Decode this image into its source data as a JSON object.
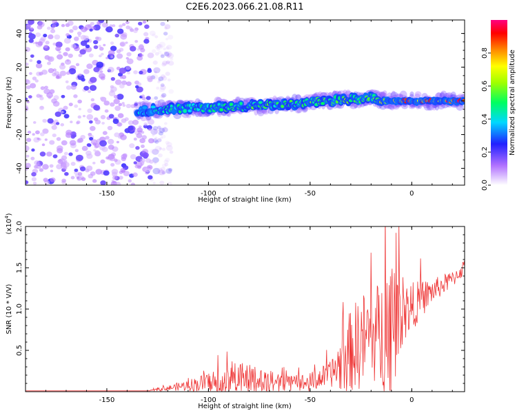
{
  "title": "C2E6.2023.066.21.08.R11",
  "colors": {
    "snr_line": "#ee3333",
    "axis": "#000000"
  },
  "chart_data": [
    {
      "type": "heatmap",
      "xlabel": "Height of straight line (km)",
      "ylabel": "Frequency (Hz)",
      "xlim": [
        -190,
        26
      ],
      "ylim": [
        -50,
        48
      ],
      "xticks": [
        -150,
        -100,
        -50,
        0
      ],
      "xtick_labels": [
        "-150",
        "-100",
        "-50",
        "0"
      ],
      "yticks": [
        -40,
        -20,
        0,
        20,
        40
      ],
      "ytick_labels": [
        "-40",
        "-20",
        "0",
        "20",
        "40"
      ],
      "colorbar": {
        "label": "Normalized spectral amplitude",
        "range": [
          0,
          1
        ],
        "ticks": [
          0.0,
          0.2,
          0.4,
          0.6,
          0.8
        ],
        "tick_labels": [
          "0.0",
          "0.2",
          "0.4",
          "0.6",
          "0.8"
        ],
        "colormap": "rainbow (white-violet-blue-cyan-green-yellow-red-pink)"
      },
      "features": [
        {
          "description": "scattered noise",
          "x_range": [
            -190,
            -128
          ],
          "freq_range": [
            -50,
            48
          ],
          "amplitude": 0.15
        },
        {
          "description": "main trace (freq vs height)",
          "x": [
            -135,
            -120,
            -100,
            -80,
            -60,
            -40,
            -30,
            -20,
            -10,
            0,
            10,
            26
          ],
          "freq": [
            -6,
            -5,
            -4,
            -3,
            -2,
            0,
            1,
            2,
            0,
            0,
            0,
            0
          ],
          "amplitude": [
            0.4,
            0.5,
            0.5,
            0.55,
            0.55,
            0.6,
            0.6,
            0.55,
            0.8,
            0.95,
            0.9,
            0.95
          ]
        }
      ],
      "grid": false
    },
    {
      "type": "line",
      "xlabel": "Height of straight line (km)",
      "ylabel": "SNR (10 * V/V)",
      "y_multiplier": "(x10",
      "y_multiplier_exp": "4",
      "y_multiplier_close": ")",
      "xlim": [
        -190,
        26
      ],
      "ylim": [
        0,
        2.0
      ],
      "xticks": [
        -150,
        -100,
        -50,
        0
      ],
      "xtick_labels": [
        "-150",
        "-100",
        "-50",
        "0"
      ],
      "yticks": [
        0.5,
        1.0,
        1.5,
        2.0
      ],
      "ytick_labels": [
        "0.5",
        "1.0",
        "1.5",
        "2.0"
      ],
      "series": [
        {
          "envelope_x": [
            -190,
            -130,
            -125,
            -120,
            -110,
            -100,
            -90,
            -80,
            -70,
            -60,
            -50,
            -40,
            -35,
            -30,
            -25,
            -20,
            -15,
            -10,
            -5,
            0,
            10,
            20,
            26
          ],
          "envelope_base": [
            0.01,
            0.01,
            0.02,
            0.04,
            0.07,
            0.1,
            0.13,
            0.11,
            0.09,
            0.08,
            0.1,
            0.2,
            0.3,
            0.45,
            0.55,
            0.65,
            0.6,
            0.75,
            0.9,
            1.0,
            1.2,
            1.35,
            1.5
          ],
          "envelope_amp": [
            0.0,
            0.0,
            0.02,
            0.03,
            0.07,
            0.12,
            0.25,
            0.2,
            0.15,
            0.1,
            0.12,
            0.15,
            0.35,
            0.5,
            0.6,
            0.55,
            0.7,
            0.9,
            0.4,
            0.3,
            0.15,
            0.1,
            0.1
          ]
        }
      ],
      "grid": false
    }
  ]
}
